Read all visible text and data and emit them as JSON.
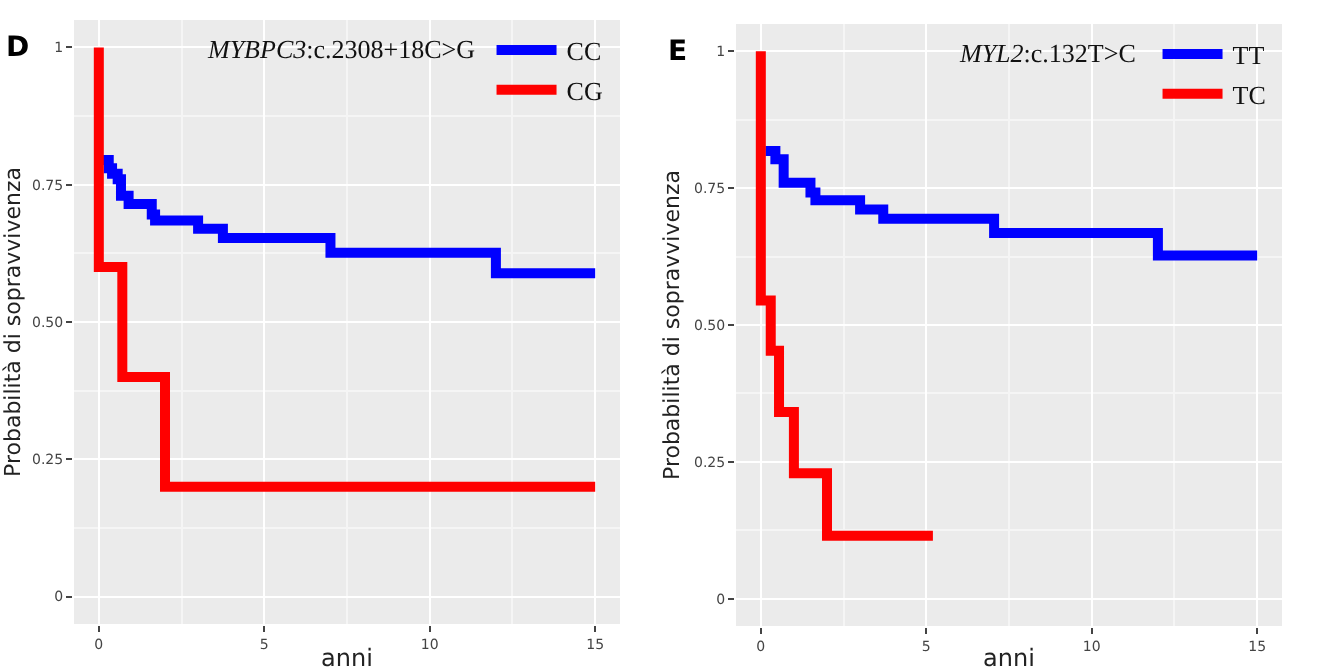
{
  "chart_data": [
    {
      "type": "step",
      "title": "MYBPC3:c.2308+18C>G",
      "annotations": [
        "D"
      ],
      "xlabel": "anni",
      "ylabel": "Probabilità di sopravvivenza",
      "xlim": [
        -0.75,
        15.75
      ],
      "xticks": [
        0,
        5,
        10,
        15
      ],
      "ylim": [
        -0.05,
        1.05
      ],
      "yticks": [
        0,
        0.25,
        {
          "value": 0.5,
          "label": "0.50"
        },
        0.75,
        1
      ],
      "grid": true,
      "legend": "top right",
      "series": [
        {
          "name": "CC",
          "color": "#0000ff",
          "x": [
            0.1,
            0.3,
            0.4,
            0.57,
            0.67,
            0.9,
            1.6,
            1.7,
            3.0,
            3.75,
            7.0,
            12.0,
            15.0
          ],
          "values": [
            0.795,
            0.78,
            0.77,
            0.76,
            0.73,
            0.715,
            0.696,
            0.685,
            0.67,
            0.653,
            0.626,
            0.589,
            0.589
          ]
        },
        {
          "name": "CG",
          "color": "#ff0000",
          "x": [
            0,
            0,
            0.71,
            2.0,
            15.0
          ],
          "values": [
            1,
            0.6,
            0.4,
            0.2,
            0.2
          ]
        }
      ]
    },
    {
      "type": "step",
      "title": "MYL2:c.132T>C",
      "annotations": [
        "E"
      ],
      "xlabel": "anni",
      "ylabel": "Probabilità di sopravvivenza",
      "xlim": [
        -0.75,
        15.75
      ],
      "xticks": [
        0,
        5,
        10,
        15
      ],
      "ylim": [
        -0.05,
        1.05
      ],
      "yticks": [
        0,
        0.25,
        {
          "value": 0.5,
          "label": "0.50"
        },
        0.75,
        1
      ],
      "grid": true,
      "legend": "top right",
      "series": [
        {
          "name": "TT",
          "color": "#0000ff",
          "x": [
            0.14,
            0.44,
            0.69,
            1.5,
            1.65,
            3.0,
            3.7,
            7.05,
            12.0,
            15.0
          ],
          "values": [
            0.818,
            0.803,
            0.76,
            0.742,
            0.728,
            0.711,
            0.694,
            0.668,
            0.627,
            0.627
          ]
        },
        {
          "name": "TC",
          "color": "#ff0000",
          "x": [
            0,
            0,
            0.3,
            0.55,
            1.0,
            2.0,
            5.2
          ],
          "values": [
            1,
            0.545,
            0.453,
            0.341,
            0.229,
            0.115,
            0.115
          ]
        }
      ]
    }
  ]
}
